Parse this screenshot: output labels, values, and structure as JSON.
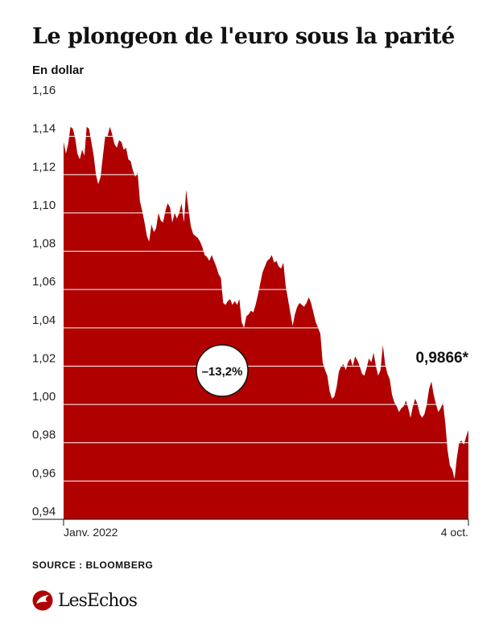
{
  "title": "Le plongeon de l'euro sous la parité",
  "unit": "En dollar",
  "source": "SOURCE :  BLOOMBERG",
  "brand": "LesEchos",
  "colors": {
    "area": "#b00000",
    "grid": "#ffffff",
    "text": "#111111"
  },
  "chart_data": {
    "type": "area",
    "y_ticks": [
      "1,16",
      "1,14",
      "1,12",
      "1,10",
      "1,08",
      "1,06",
      "1,04",
      "1,02",
      "1,00",
      "0,98",
      "0,96",
      "0,94"
    ],
    "ylim": [
      0.94,
      1.16
    ],
    "x_labels": [
      "Janv. 2022",
      "4 oct."
    ],
    "grid": true,
    "change_label": "–13,2%",
    "last_value_label": "0,9866*",
    "series": [
      {
        "values": [
          1.137,
          1.131,
          1.136,
          1.145,
          1.144,
          1.139,
          1.131,
          1.128,
          1.133,
          1.13,
          1.145,
          1.144,
          1.137,
          1.13,
          1.12,
          1.115,
          1.119,
          1.13,
          1.14,
          1.14,
          1.145,
          1.141,
          1.136,
          1.134,
          1.138,
          1.137,
          1.133,
          1.134,
          1.128,
          1.127,
          1.122,
          1.119,
          1.121,
          1.106,
          1.101,
          1.095,
          1.088,
          1.085,
          1.094,
          1.09,
          1.092,
          1.1,
          1.096,
          1.095,
          1.101,
          1.105,
          1.103,
          1.095,
          1.1,
          1.097,
          1.1,
          1.105,
          1.095,
          1.112,
          1.102,
          1.093,
          1.089,
          1.088,
          1.087,
          1.085,
          1.082,
          1.078,
          1.077,
          1.075,
          1.078,
          1.075,
          1.072,
          1.068,
          1.066,
          1.053,
          1.052,
          1.054,
          1.055,
          1.052,
          1.054,
          1.052,
          1.055,
          1.043,
          1.04,
          1.046,
          1.047,
          1.049,
          1.048,
          1.052,
          1.057,
          1.063,
          1.069,
          1.072,
          1.075,
          1.076,
          1.078,
          1.074,
          1.075,
          1.072,
          1.071,
          1.074,
          1.062,
          1.055,
          1.048,
          1.041,
          1.047,
          1.051,
          1.053,
          1.052,
          1.051,
          1.053,
          1.056,
          1.053,
          1.048,
          1.043,
          1.04,
          1.037,
          1.022,
          1.018,
          1.015,
          1.007,
          1.003,
          1.004,
          1.009,
          1.017,
          1.02,
          1.021,
          1.018,
          1.022,
          1.024,
          1.02,
          1.025,
          1.023,
          1.02,
          1.016,
          1.015,
          1.019,
          1.024,
          1.022,
          1.027,
          1.02,
          1.015,
          1.018,
          1.031,
          1.021,
          1.016,
          1.013,
          1.005,
          1.001,
          0.999,
          0.996,
          0.998,
          0.999,
          1.002,
          0.998,
          0.993,
          0.999,
          1.003,
          1.0,
          0.995,
          0.993,
          0.995,
          1.0,
          1.008,
          1.012,
          1.005,
          1.0,
          0.996,
          0.998,
          1.001,
          0.99,
          0.976,
          0.968,
          0.966,
          0.961,
          0.972,
          0.98,
          0.981,
          0.979,
          0.983,
          0.9866
        ]
      }
    ]
  }
}
